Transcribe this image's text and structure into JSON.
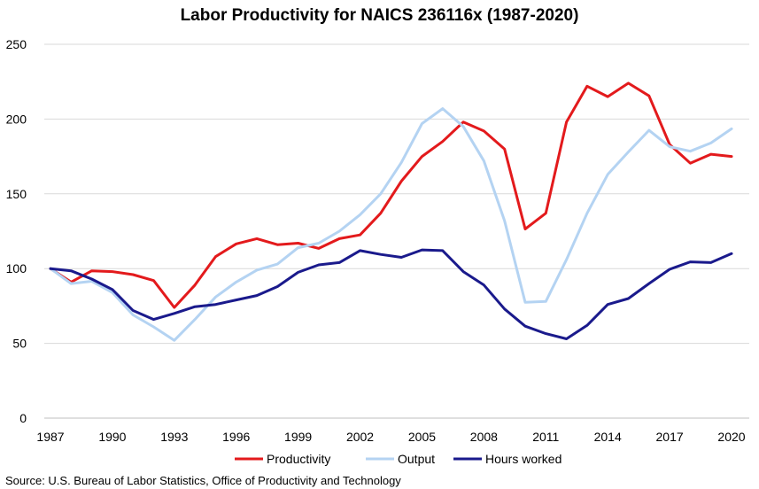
{
  "chart_data": {
    "type": "line",
    "title": "Labor Productivity for NAICS 236116x  (1987-2020)",
    "xlabel": "",
    "ylabel": "",
    "ylim": [
      0,
      250
    ],
    "yticks": [
      0,
      50,
      100,
      150,
      200,
      250
    ],
    "xticks": [
      1987,
      1990,
      1993,
      1996,
      1999,
      2002,
      2005,
      2008,
      2011,
      2014,
      2017,
      2020
    ],
    "grid": true,
    "legend_position": "bottom",
    "x": [
      1987,
      1988,
      1989,
      1990,
      1991,
      1992,
      1993,
      1994,
      1995,
      1996,
      1997,
      1998,
      1999,
      2000,
      2001,
      2002,
      2003,
      2004,
      2005,
      2006,
      2007,
      2008,
      2009,
      2010,
      2011,
      2012,
      2013,
      2014,
      2015,
      2016,
      2017,
      2018,
      2019,
      2020
    ],
    "series": [
      {
        "name": "Productivity",
        "color": "#e31a1c",
        "values": [
          100,
          91,
          98.5,
          98,
          96,
          92,
          74,
          89,
          108,
          116.5,
          120,
          116,
          117,
          113.5,
          120,
          122.5,
          137,
          158.5,
          175,
          185,
          198,
          192,
          180,
          126.5,
          137,
          198,
          222,
          215,
          224,
          215.5,
          183,
          170.5,
          176.5,
          175
        ]
      },
      {
        "name": "Output",
        "color": "#b4d3f2",
        "values": [
          100,
          90,
          91.5,
          84,
          69,
          61,
          52,
          66,
          81,
          91,
          99,
          103,
          114,
          117,
          125,
          136,
          150,
          171,
          197,
          207,
          195,
          172,
          132,
          77.5,
          78,
          106,
          137,
          163,
          178,
          192.5,
          181.5,
          178.5,
          184,
          193.5
        ]
      },
      {
        "name": "Hours worked",
        "color": "#1a1a8c",
        "values": [
          100,
          98.5,
          93,
          86,
          72,
          66,
          70,
          74.5,
          76,
          79,
          82,
          88,
          97.5,
          102.5,
          104,
          112,
          109.5,
          107.5,
          112.5,
          112,
          98,
          89,
          73,
          61.5,
          56.5,
          53,
          62,
          76,
          80,
          90,
          99.5,
          104.5,
          104,
          110
        ]
      }
    ]
  },
  "source": "Source:  U.S. Bureau of Labor Statistics, Office of Productivity and Technology"
}
